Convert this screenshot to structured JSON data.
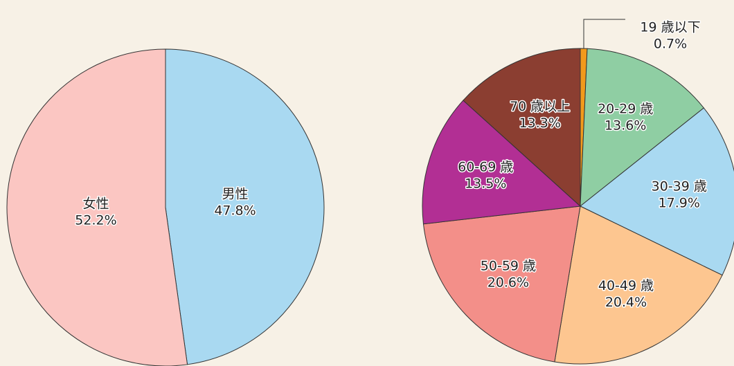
{
  "chart_data": [
    {
      "type": "pie",
      "categories": [
        "男性",
        "女性"
      ],
      "values": [
        47.8,
        52.2
      ],
      "value_labels": [
        "47.8%",
        "52.2%"
      ],
      "colors": [
        "#a9d9f1",
        "#fbc6c2"
      ]
    },
    {
      "type": "pie",
      "categories": [
        "19 歳以下",
        "20-29 歳",
        "30-39 歳",
        "40-49 歳",
        "50-59 歳",
        "60-69 歳",
        "70 歳以上"
      ],
      "values": [
        0.7,
        13.6,
        17.9,
        20.4,
        20.6,
        13.5,
        13.3
      ],
      "value_labels": [
        "0.7%",
        "13.6%",
        "17.9%",
        "20.4%",
        "20.6%",
        "13.5%",
        "13.3%"
      ],
      "colors": [
        "#f29a1c",
        "#8fcea3",
        "#a9d9f1",
        "#fdc690",
        "#f38f89",
        "#b22f94",
        "#8b3e31"
      ]
    }
  ]
}
